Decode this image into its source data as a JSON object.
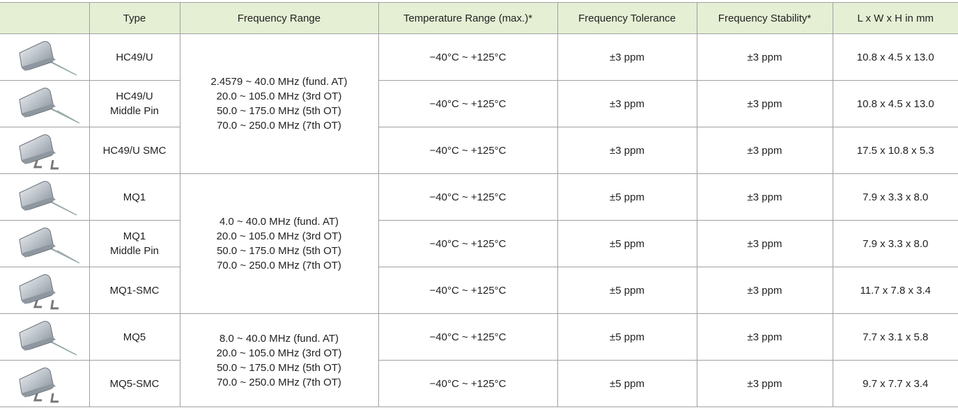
{
  "header": {
    "columns": [
      "Type",
      "Frequency Range",
      "Temperature Range (max.)*",
      "Frequency Tolerance",
      "Frequency Stability*",
      "L x W x H in mm"
    ]
  },
  "groups": [
    {
      "frequency_range": [
        "2.4579 ~ 40.0 MHz (fund. AT)",
        "20.0 ~ 105.0 MHz (3rd OT)",
        "50.0 ~ 175.0 MHz (5th OT)",
        "70.0 ~ 250.0 MHz (7th OT)"
      ],
      "rows": [
        {
          "type": [
            "HC49/U"
          ],
          "temperature": "−40°C ~ +125°C",
          "tolerance": "±3 ppm",
          "stability": "±3 ppm",
          "dimensions": "10.8 x 4.5 x 13.0"
        },
        {
          "type": [
            "HC49/U",
            "Middle Pin"
          ],
          "temperature": "−40°C ~ +125°C",
          "tolerance": "±3 ppm",
          "stability": "±3 ppm",
          "dimensions": "10.8 x 4.5 x 13.0"
        },
        {
          "type": [
            "HC49/U SMC"
          ],
          "temperature": "−40°C ~ +125°C",
          "tolerance": "±3 ppm",
          "stability": "±3 ppm",
          "dimensions": "17.5 x 10.8 x 5.3"
        }
      ]
    },
    {
      "frequency_range": [
        "4.0 ~ 40.0 MHz (fund. AT)",
        "20.0 ~ 105.0 MHz (3rd OT)",
        "50.0 ~ 175.0 MHz (5th OT)",
        "70.0 ~ 250.0 MHz (7th OT)"
      ],
      "rows": [
        {
          "type": [
            "MQ1"
          ],
          "temperature": "−40°C ~ +125°C",
          "tolerance": "±5 ppm",
          "stability": "±3 ppm",
          "dimensions": "7.9 x 3.3 x 8.0"
        },
        {
          "type": [
            "MQ1",
            "Middle Pin"
          ],
          "temperature": "−40°C ~ +125°C",
          "tolerance": "±5 ppm",
          "stability": "±3 ppm",
          "dimensions": "7.9 x 3.3 x 8.0"
        },
        {
          "type": [
            "MQ1-SMC"
          ],
          "temperature": "−40°C ~ +125°C",
          "tolerance": "±5 ppm",
          "stability": "±3 ppm",
          "dimensions": "11.7 x 7.8 x 3.4"
        }
      ]
    },
    {
      "frequency_range": [
        "8.0 ~ 40.0 MHz (fund. AT)",
        "20.0 ~ 105.0 MHz (3rd OT)",
        "50.0 ~ 175.0 MHz (5th OT)",
        "70.0 ~ 250.0 MHz (7th OT)"
      ],
      "rows": [
        {
          "type": [
            "MQ5"
          ],
          "temperature": "−40°C ~ +125°C",
          "tolerance": "±5 ppm",
          "stability": "±3 ppm",
          "dimensions": "7.7 x 3.1 x 5.8"
        },
        {
          "type": [
            "MQ5-SMC"
          ],
          "temperature": "−40°C ~ +125°C",
          "tolerance": "±5 ppm",
          "stability": "±3 ppm",
          "dimensions": "9.7 x 7.7 x 3.4"
        }
      ]
    }
  ]
}
